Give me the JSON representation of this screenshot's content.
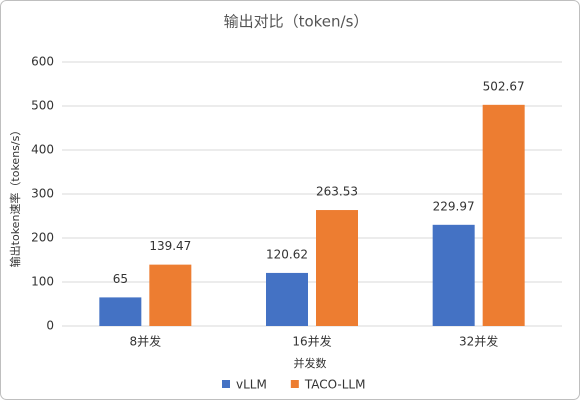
{
  "chart_data": {
    "type": "bar",
    "title": "输出对比（token/s）",
    "y_label": "输出token速率（tokens/s）",
    "x_label": "并发数",
    "categories": [
      "8并发",
      "16并发",
      "32并发"
    ],
    "series": [
      {
        "name": "vLLM",
        "color": "#4472c4",
        "values": [
          65,
          120.62,
          229.97
        ]
      },
      {
        "name": "TACO-LLM",
        "color": "#ed7d31",
        "values": [
          139.47,
          263.53,
          502.67
        ]
      }
    ],
    "ylim": [
      0,
      600
    ],
    "yticks": [
      0,
      100,
      200,
      300,
      400,
      500,
      600
    ],
    "grid": true,
    "legend": "bottom"
  }
}
